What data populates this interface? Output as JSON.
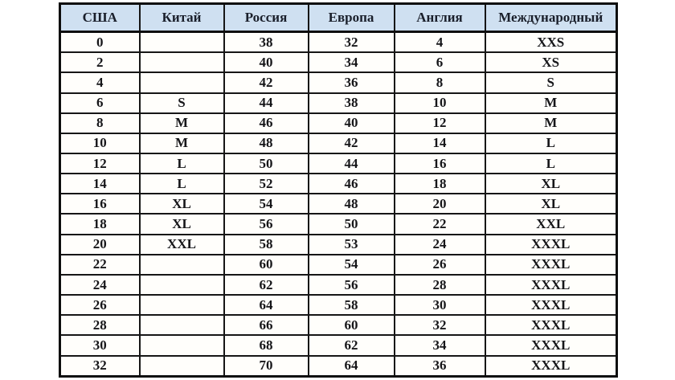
{
  "chart_data": {
    "type": "table",
    "title": "",
    "columns": [
      "США",
      "Китай",
      "Россия",
      "Европа",
      "Англия",
      "Международный"
    ],
    "rows": [
      [
        "0",
        "",
        "38",
        "32",
        "4",
        "XXS"
      ],
      [
        "2",
        "",
        "40",
        "34",
        "6",
        "XS"
      ],
      [
        "4",
        "",
        "42",
        "36",
        "8",
        "S"
      ],
      [
        "6",
        "S",
        "44",
        "38",
        "10",
        "M"
      ],
      [
        "8",
        "M",
        "46",
        "40",
        "12",
        "M"
      ],
      [
        "10",
        "M",
        "48",
        "42",
        "14",
        "L"
      ],
      [
        "12",
        "L",
        "50",
        "44",
        "16",
        "L"
      ],
      [
        "14",
        "L",
        "52",
        "46",
        "18",
        "XL"
      ],
      [
        "16",
        "XL",
        "54",
        "48",
        "20",
        "XL"
      ],
      [
        "18",
        "XL",
        "56",
        "50",
        "22",
        "XXL"
      ],
      [
        "20",
        "XXL",
        "58",
        "53",
        "24",
        "XXXL"
      ],
      [
        "22",
        "",
        "60",
        "54",
        "26",
        "XXXL"
      ],
      [
        "24",
        "",
        "62",
        "56",
        "28",
        "XXXL"
      ],
      [
        "26",
        "",
        "64",
        "58",
        "30",
        "XXXL"
      ],
      [
        "28",
        "",
        "66",
        "60",
        "32",
        "XXXL"
      ],
      [
        "30",
        "",
        "68",
        "62",
        "34",
        "XXXL"
      ],
      [
        "32",
        "",
        "70",
        "64",
        "36",
        "XXXL"
      ]
    ],
    "colors": {
      "header_bg": "#cfe0f1",
      "border": "#161616",
      "header_text": "#1a1f2b",
      "cell_text": "#161619",
      "page_bg": "#ffffff"
    },
    "layout": {
      "grid": "on",
      "header_row": true
    }
  }
}
